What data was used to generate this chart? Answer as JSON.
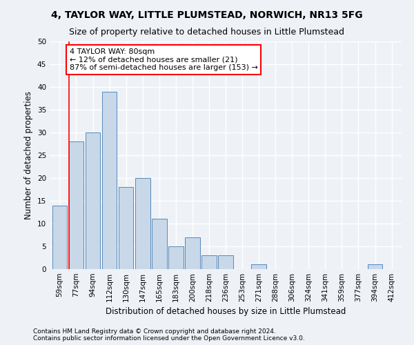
{
  "title": "4, TAYLOR WAY, LITTLE PLUMSTEAD, NORWICH, NR13 5FG",
  "subtitle": "Size of property relative to detached houses in Little Plumstead",
  "xlabel": "Distribution of detached houses by size in Little Plumstead",
  "ylabel": "Number of detached properties",
  "categories": [
    "59sqm",
    "77sqm",
    "94sqm",
    "112sqm",
    "130sqm",
    "147sqm",
    "165sqm",
    "183sqm",
    "200sqm",
    "218sqm",
    "236sqm",
    "253sqm",
    "271sqm",
    "288sqm",
    "306sqm",
    "324sqm",
    "341sqm",
    "359sqm",
    "377sqm",
    "394sqm",
    "412sqm"
  ],
  "values": [
    14,
    28,
    30,
    39,
    18,
    20,
    11,
    5,
    7,
    3,
    3,
    0,
    1,
    0,
    0,
    0,
    0,
    0,
    0,
    1,
    0
  ],
  "bar_color": "#c8d8e8",
  "bar_edge_color": "#5588bb",
  "vline_x_index": 1,
  "annotation_text": "4 TAYLOR WAY: 80sqm\n← 12% of detached houses are smaller (21)\n87% of semi-detached houses are larger (153) →",
  "annotation_box_color": "white",
  "annotation_box_edge_color": "red",
  "vline_color": "red",
  "ylim": [
    0,
    50
  ],
  "yticks": [
    0,
    5,
    10,
    15,
    20,
    25,
    30,
    35,
    40,
    45,
    50
  ],
  "footnote1": "Contains HM Land Registry data © Crown copyright and database right 2024.",
  "footnote2": "Contains public sector information licensed under the Open Government Licence v3.0.",
  "background_color": "#eef2f7",
  "grid_color": "white",
  "title_fontsize": 10,
  "subtitle_fontsize": 9,
  "label_fontsize": 8.5,
  "tick_fontsize": 7.5,
  "annot_fontsize": 8,
  "footnote_fontsize": 6.5
}
